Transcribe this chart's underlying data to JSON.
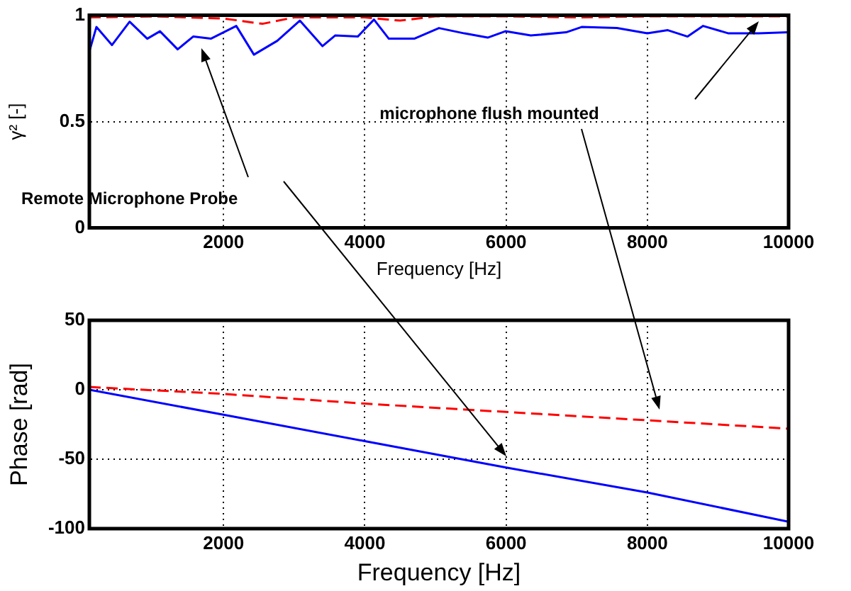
{
  "chart_data": [
    {
      "type": "line",
      "xlabel": "Frequency [Hz]",
      "ylabel": "γ² [-]",
      "xlim": [
        100,
        10000
      ],
      "xticks": [
        2000,
        4000,
        6000,
        8000,
        10000
      ],
      "ylim": [
        0,
        1
      ],
      "yticks": [
        0,
        0.5,
        1
      ],
      "grid": true,
      "legend": false,
      "marker": "none",
      "annotations": [
        "Remote Microphone Probe",
        "microphone flush mounted"
      ],
      "series": [
        {
          "color": "#ff0000",
          "line_style": "dashed",
          "x": [
            100,
            1000,
            2000,
            2550,
            3000,
            4000,
            4500,
            5000,
            6000,
            7000,
            8000,
            10000
          ],
          "values": [
            0.99,
            0.995,
            0.985,
            0.96,
            0.99,
            0.99,
            0.975,
            0.995,
            0.995,
            0.99,
            0.995,
            0.995
          ]
        },
        {
          "color": "#0000ff",
          "line_style": "solid",
          "x": [
            100,
            200,
            420,
            670,
            920,
            1100,
            1350,
            1570,
            1820,
            2180,
            2430,
            2760,
            3080,
            3400,
            3580,
            3900,
            4130,
            4340,
            4700,
            5050,
            5410,
            5740,
            5990,
            6350,
            6850,
            7070,
            7570,
            8000,
            8290,
            8570,
            8790,
            9150,
            9580,
            10000
          ],
          "values": [
            0.83,
            0.945,
            0.86,
            0.97,
            0.89,
            0.925,
            0.84,
            0.9,
            0.89,
            0.95,
            0.815,
            0.88,
            0.975,
            0.855,
            0.905,
            0.9,
            0.98,
            0.89,
            0.89,
            0.94,
            0.915,
            0.895,
            0.925,
            0.905,
            0.92,
            0.945,
            0.94,
            0.915,
            0.93,
            0.9,
            0.95,
            0.915,
            0.915,
            0.92
          ]
        }
      ]
    },
    {
      "type": "line",
      "xlabel": "Frequency [Hz]",
      "ylabel": "Phase [rad]",
      "xlim": [
        100,
        10000
      ],
      "xticks": [
        2000,
        4000,
        6000,
        8000,
        10000
      ],
      "ylim": [
        -100,
        50
      ],
      "yticks": [
        -100,
        -50,
        0,
        50
      ],
      "grid": true,
      "legend": false,
      "marker": "none",
      "series": [
        {
          "color": "#ff0000",
          "line_style": "dashed",
          "x": [
            100,
            2000,
            4000,
            6000,
            8000,
            10000
          ],
          "values": [
            2,
            -3,
            -10,
            -16,
            -22,
            -28
          ]
        },
        {
          "color": "#0000ff",
          "line_style": "solid",
          "x": [
            100,
            2000,
            4000,
            6000,
            8000,
            10000
          ],
          "values": [
            0,
            -18,
            -37,
            -56,
            -74,
            -95
          ]
        }
      ]
    }
  ]
}
